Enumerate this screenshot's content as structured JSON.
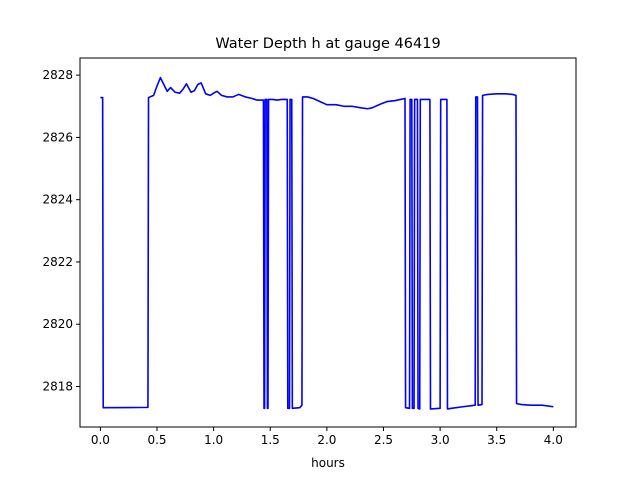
{
  "chart_data": {
    "type": "line",
    "title": "Water Depth h at gauge 46419",
    "xlabel": "hours",
    "ylabel": "",
    "xlim": [
      -0.18,
      4.2
    ],
    "ylim": [
      2816.7,
      2828.55
    ],
    "xticks": [
      0.0,
      0.5,
      1.0,
      1.5,
      2.0,
      2.5,
      3.0,
      3.5,
      4.0
    ],
    "xtick_labels": [
      "0.0",
      "0.5",
      "1.0",
      "1.5",
      "2.0",
      "2.5",
      "3.0",
      "3.5",
      "4.0"
    ],
    "yticks": [
      2818,
      2820,
      2822,
      2824,
      2826,
      2828
    ],
    "ytick_labels": [
      "2818",
      "2820",
      "2822",
      "2824",
      "2826",
      "2828"
    ],
    "grid": false,
    "series": [
      {
        "name": "",
        "color": "#0000ff",
        "points": [
          [
            0.0,
            2827.28
          ],
          [
            0.02,
            2827.28
          ],
          [
            0.025,
            2817.32
          ],
          [
            0.42,
            2817.33
          ],
          [
            0.425,
            2827.28
          ],
          [
            0.47,
            2827.35
          ],
          [
            0.5,
            2827.65
          ],
          [
            0.53,
            2827.92
          ],
          [
            0.56,
            2827.7
          ],
          [
            0.59,
            2827.48
          ],
          [
            0.62,
            2827.6
          ],
          [
            0.66,
            2827.45
          ],
          [
            0.7,
            2827.42
          ],
          [
            0.73,
            2827.55
          ],
          [
            0.76,
            2827.72
          ],
          [
            0.8,
            2827.45
          ],
          [
            0.83,
            2827.5
          ],
          [
            0.86,
            2827.7
          ],
          [
            0.89,
            2827.75
          ],
          [
            0.93,
            2827.4
          ],
          [
            0.97,
            2827.35
          ],
          [
            1.0,
            2827.42
          ],
          [
            1.03,
            2827.48
          ],
          [
            1.07,
            2827.35
          ],
          [
            1.12,
            2827.3
          ],
          [
            1.17,
            2827.3
          ],
          [
            1.22,
            2827.38
          ],
          [
            1.28,
            2827.3
          ],
          [
            1.34,
            2827.25
          ],
          [
            1.38,
            2827.2
          ],
          [
            1.43,
            2827.2
          ],
          [
            1.44,
            2827.2
          ],
          [
            1.445,
            2817.3
          ],
          [
            1.45,
            2817.3
          ],
          [
            1.455,
            2827.22
          ],
          [
            1.47,
            2827.22
          ],
          [
            1.475,
            2817.3
          ],
          [
            1.48,
            2817.3
          ],
          [
            1.485,
            2827.22
          ],
          [
            1.52,
            2827.22
          ],
          [
            1.56,
            2827.2
          ],
          [
            1.6,
            2827.22
          ],
          [
            1.65,
            2827.22
          ],
          [
            1.655,
            2817.3
          ],
          [
            1.67,
            2817.3
          ],
          [
            1.675,
            2827.22
          ],
          [
            1.69,
            2827.22
          ],
          [
            1.695,
            2817.3
          ],
          [
            1.76,
            2817.32
          ],
          [
            1.78,
            2817.4
          ],
          [
            1.785,
            2827.3
          ],
          [
            1.83,
            2827.3
          ],
          [
            1.88,
            2827.25
          ],
          [
            1.94,
            2827.15
          ],
          [
            2.0,
            2827.05
          ],
          [
            2.08,
            2827.05
          ],
          [
            2.15,
            2827.0
          ],
          [
            2.22,
            2827.0
          ],
          [
            2.3,
            2826.95
          ],
          [
            2.36,
            2826.92
          ],
          [
            2.4,
            2826.95
          ],
          [
            2.46,
            2827.05
          ],
          [
            2.53,
            2827.15
          ],
          [
            2.6,
            2827.18
          ],
          [
            2.65,
            2827.22
          ],
          [
            2.69,
            2827.25
          ],
          [
            2.695,
            2817.32
          ],
          [
            2.73,
            2817.3
          ],
          [
            2.735,
            2827.22
          ],
          [
            2.75,
            2827.22
          ],
          [
            2.755,
            2817.3
          ],
          [
            2.77,
            2817.3
          ],
          [
            2.775,
            2827.22
          ],
          [
            2.8,
            2827.22
          ],
          [
            2.805,
            2817.3
          ],
          [
            2.82,
            2817.28
          ],
          [
            2.825,
            2827.22
          ],
          [
            2.91,
            2827.22
          ],
          [
            2.915,
            2817.28
          ],
          [
            3.0,
            2817.3
          ],
          [
            3.005,
            2827.22
          ],
          [
            3.06,
            2827.22
          ],
          [
            3.065,
            2817.28
          ],
          [
            3.1,
            2817.3
          ],
          [
            3.2,
            2817.35
          ],
          [
            3.31,
            2817.4
          ],
          [
            3.315,
            2827.3
          ],
          [
            3.33,
            2827.3
          ],
          [
            3.335,
            2817.4
          ],
          [
            3.37,
            2817.42
          ],
          [
            3.375,
            2827.35
          ],
          [
            3.42,
            2827.38
          ],
          [
            3.5,
            2827.4
          ],
          [
            3.58,
            2827.4
          ],
          [
            3.64,
            2827.38
          ],
          [
            3.67,
            2827.35
          ],
          [
            3.675,
            2817.45
          ],
          [
            3.72,
            2817.42
          ],
          [
            3.8,
            2817.4
          ],
          [
            3.9,
            2817.4
          ],
          [
            4.0,
            2817.35
          ]
        ]
      }
    ]
  }
}
